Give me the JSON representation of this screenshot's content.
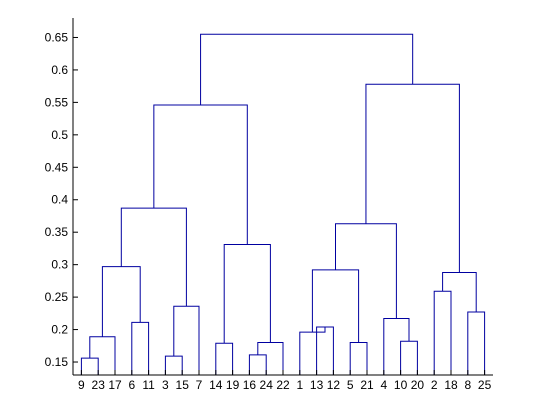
{
  "chart_data": {
    "type": "dendrogram",
    "title": "",
    "xlabel": "",
    "ylabel": "",
    "ylim": [
      0.13,
      0.68
    ],
    "y_ticks": [
      "0.15",
      "0.2",
      "0.25",
      "0.3",
      "0.35",
      "0.4",
      "0.45",
      "0.5",
      "0.55",
      "0.6",
      "0.65"
    ],
    "leaf_order": [
      "9",
      "23",
      "17",
      "6",
      "11",
      "3",
      "15",
      "7",
      "14",
      "19",
      "16",
      "24",
      "22",
      "1",
      "13",
      "12",
      "5",
      "21",
      "4",
      "10",
      "20",
      "2",
      "18",
      "8",
      "25"
    ],
    "merges": [
      {
        "a": "L9",
        "b": "L23",
        "id": "c1",
        "h": 0.156
      },
      {
        "a": "c1",
        "b": "L17",
        "id": "c2",
        "h": 0.189
      },
      {
        "a": "L6",
        "b": "L11",
        "id": "c3",
        "h": 0.211
      },
      {
        "a": "c2",
        "b": "c3",
        "id": "c4",
        "h": 0.297
      },
      {
        "a": "L3",
        "b": "L15",
        "id": "c5",
        "h": 0.159
      },
      {
        "a": "c5",
        "b": "L7",
        "id": "c6",
        "h": 0.236
      },
      {
        "a": "c4",
        "b": "c6",
        "id": "c7",
        "h": 0.387
      },
      {
        "a": "L14",
        "b": "L19",
        "id": "c8",
        "h": 0.179
      },
      {
        "a": "L16",
        "b": "L24",
        "id": "c9",
        "h": 0.161
      },
      {
        "a": "c9",
        "b": "L22",
        "id": "c10",
        "h": 0.18
      },
      {
        "a": "c8",
        "b": "c10",
        "id": "c11",
        "h": 0.331
      },
      {
        "a": "c7",
        "b": "c11",
        "id": "c12",
        "h": 0.546
      },
      {
        "a": "L13",
        "b": "L12",
        "id": "c13",
        "h": 0.204
      },
      {
        "a": "L1",
        "b": "c13",
        "id": "c14",
        "h": 0.196
      },
      {
        "a": "L5",
        "b": "L21",
        "id": "c15",
        "h": 0.18
      },
      {
        "a": "c14",
        "b": "c15",
        "id": "c16",
        "h": 0.292
      },
      {
        "a": "L10",
        "b": "L20",
        "id": "c17",
        "h": 0.182
      },
      {
        "a": "L4",
        "b": "c17",
        "id": "c18",
        "h": 0.217
      },
      {
        "a": "c16",
        "b": "c18",
        "id": "c19",
        "h": 0.363
      },
      {
        "a": "L2",
        "b": "L18",
        "id": "c20",
        "h": 0.259
      },
      {
        "a": "L8",
        "b": "L25",
        "id": "c21",
        "h": 0.227
      },
      {
        "a": "c20",
        "b": "c21",
        "id": "c22",
        "h": 0.288
      },
      {
        "a": "c19",
        "b": "c22",
        "id": "c23",
        "h": 0.578
      },
      {
        "a": "c12",
        "b": "c23",
        "id": "c24",
        "h": 0.655
      }
    ],
    "link_color": "#0000a0",
    "grid": false,
    "legend": "none"
  }
}
